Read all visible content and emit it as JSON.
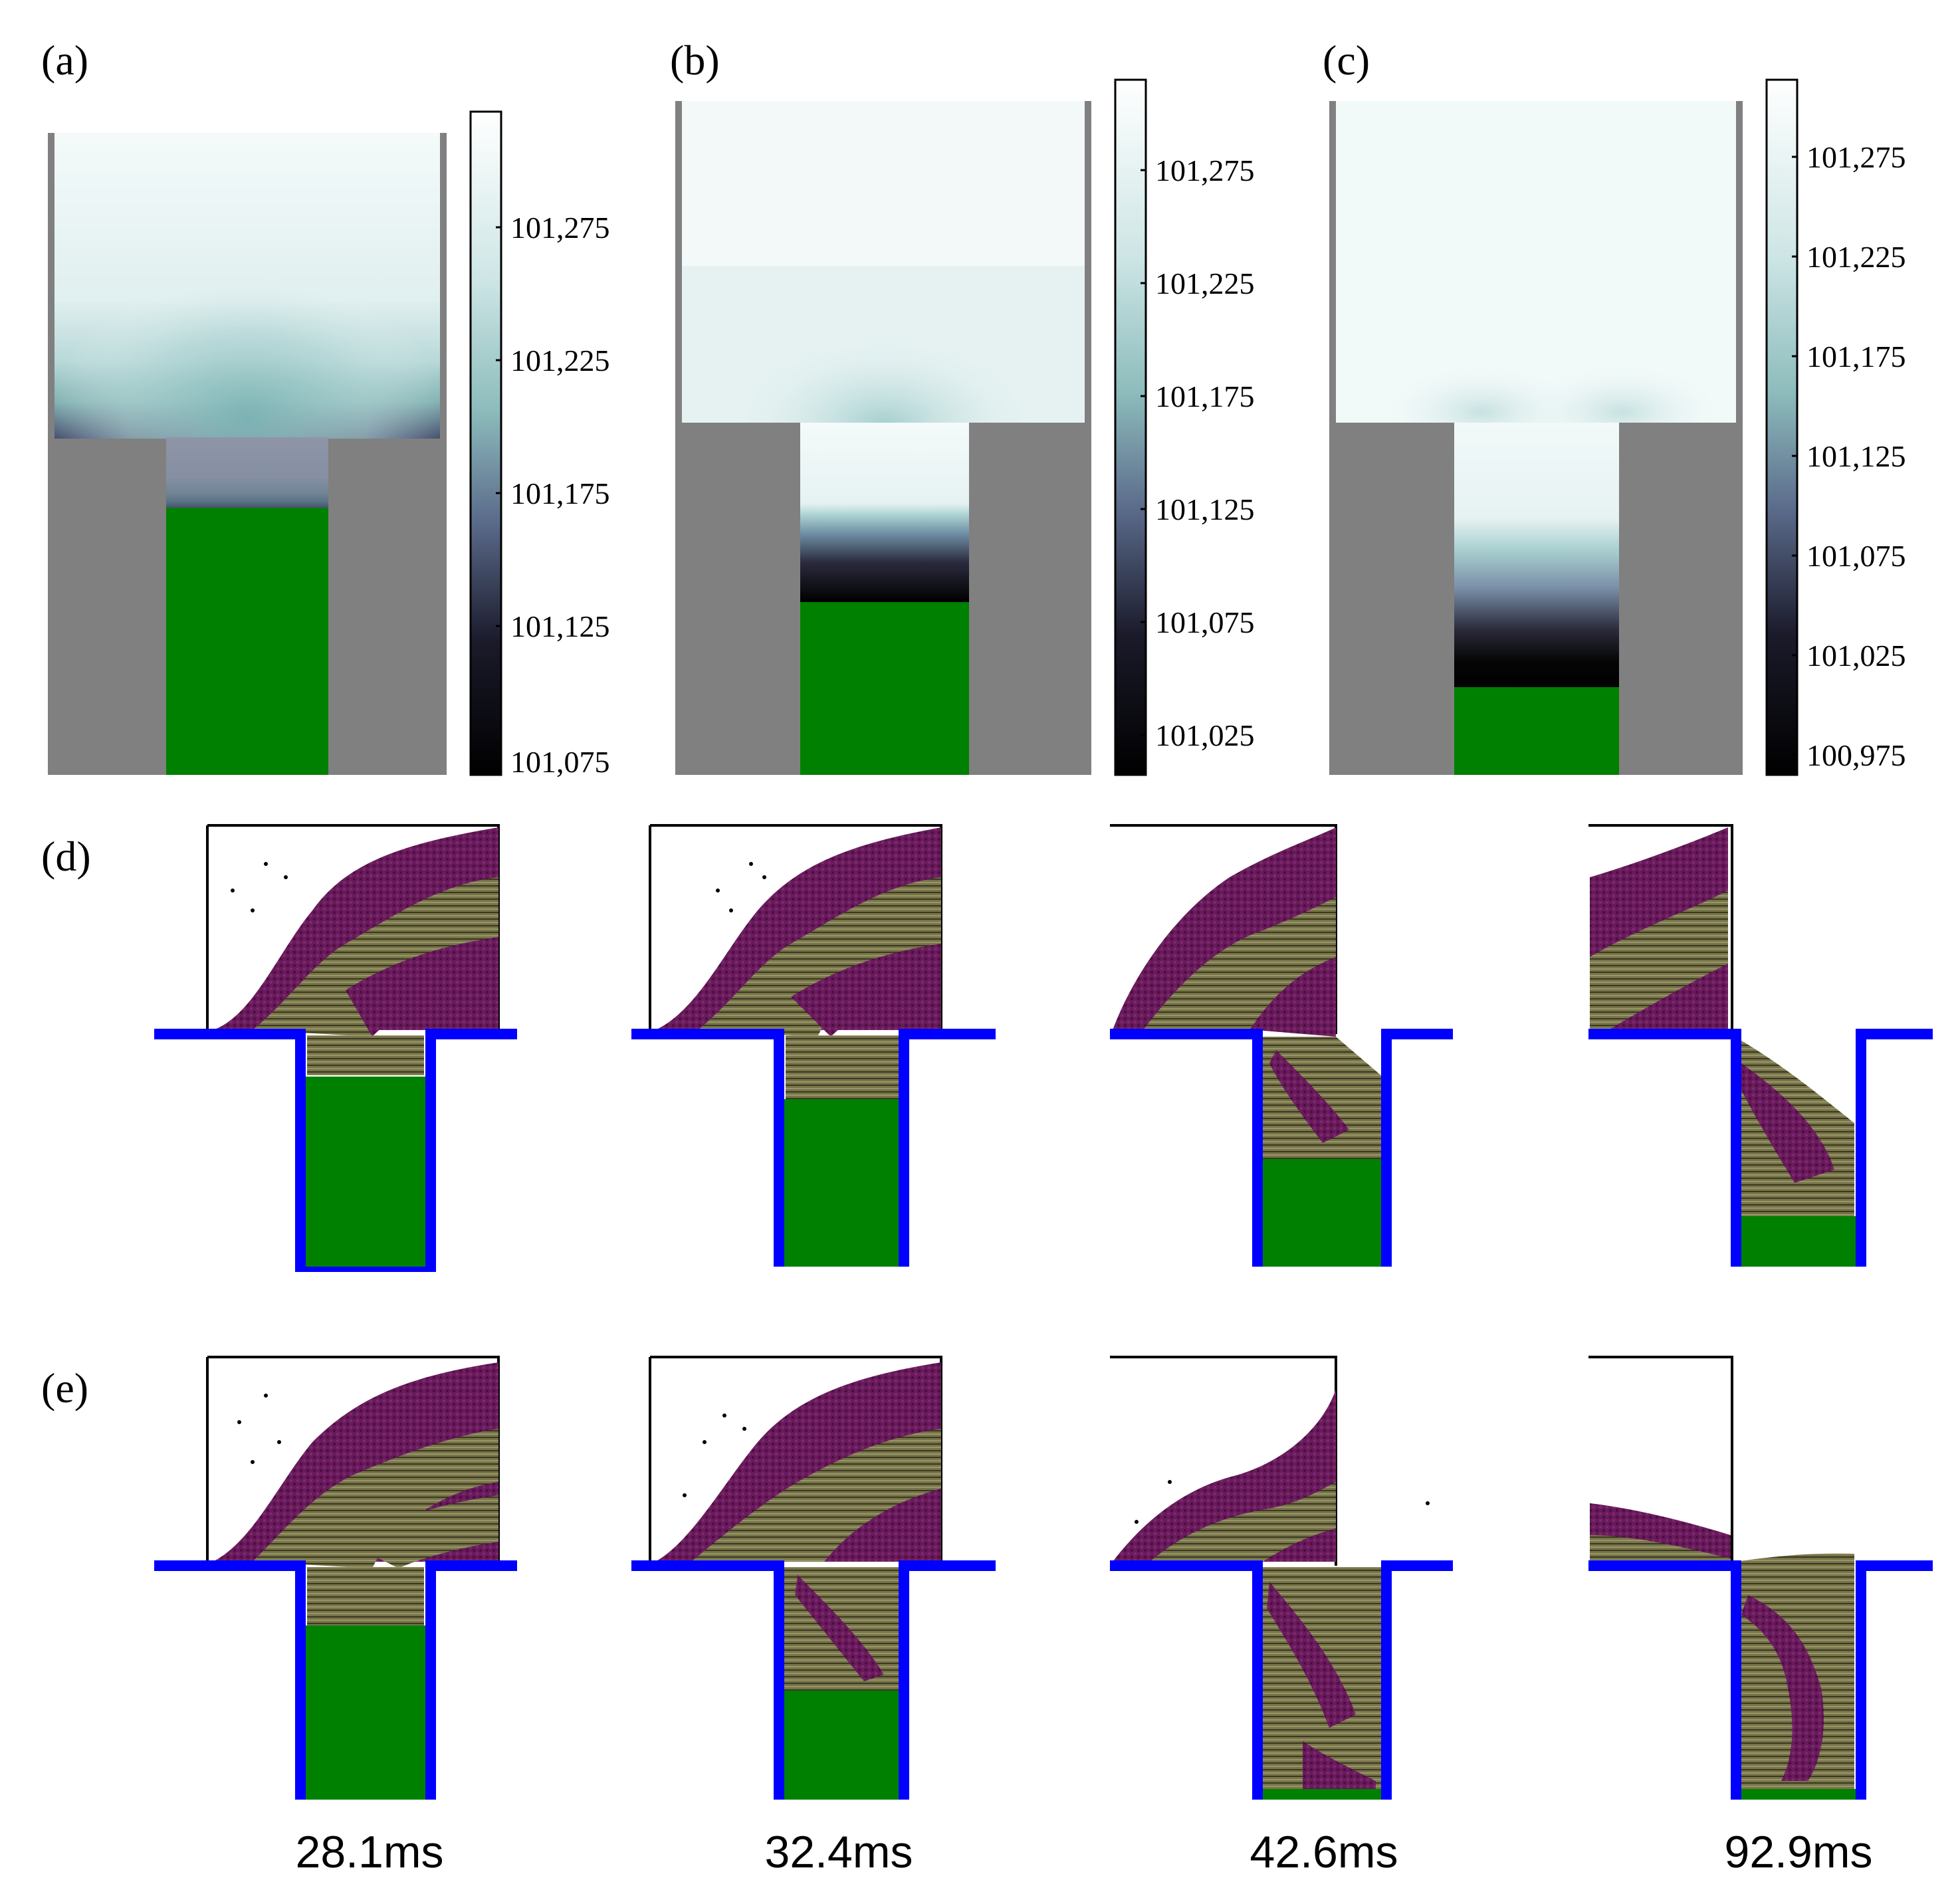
{
  "figure": {
    "panel_labels": {
      "a": "(a)",
      "b": "(b)",
      "c": "(c)",
      "d": "(d)",
      "e": "(e)"
    },
    "colorbars": {
      "a": {
        "ticks": [
          "101,275",
          "101,225",
          "101,175",
          "101,125",
          "101,075"
        ]
      },
      "b": {
        "ticks": [
          "101,275",
          "101,225",
          "101,175",
          "101,125",
          "101,075",
          "101,025"
        ]
      },
      "c": {
        "ticks": [
          "101,275",
          "101,225",
          "101,175",
          "101,125",
          "101,075",
          "101,025",
          "100,975"
        ]
      }
    },
    "times": [
      "28.1ms",
      "32.4ms",
      "42.6ms",
      "92.9ms"
    ]
  },
  "colors": {
    "wall": "#808080",
    "piston": "#008000",
    "channel": "#0000ff",
    "particle_purple": "#6b1a5e",
    "particle_olive": "#6e6b32",
    "colorbar_high": "#f4fafa",
    "colorbar_mid": "#8dbcbc",
    "colorbar_low": "#000000"
  }
}
